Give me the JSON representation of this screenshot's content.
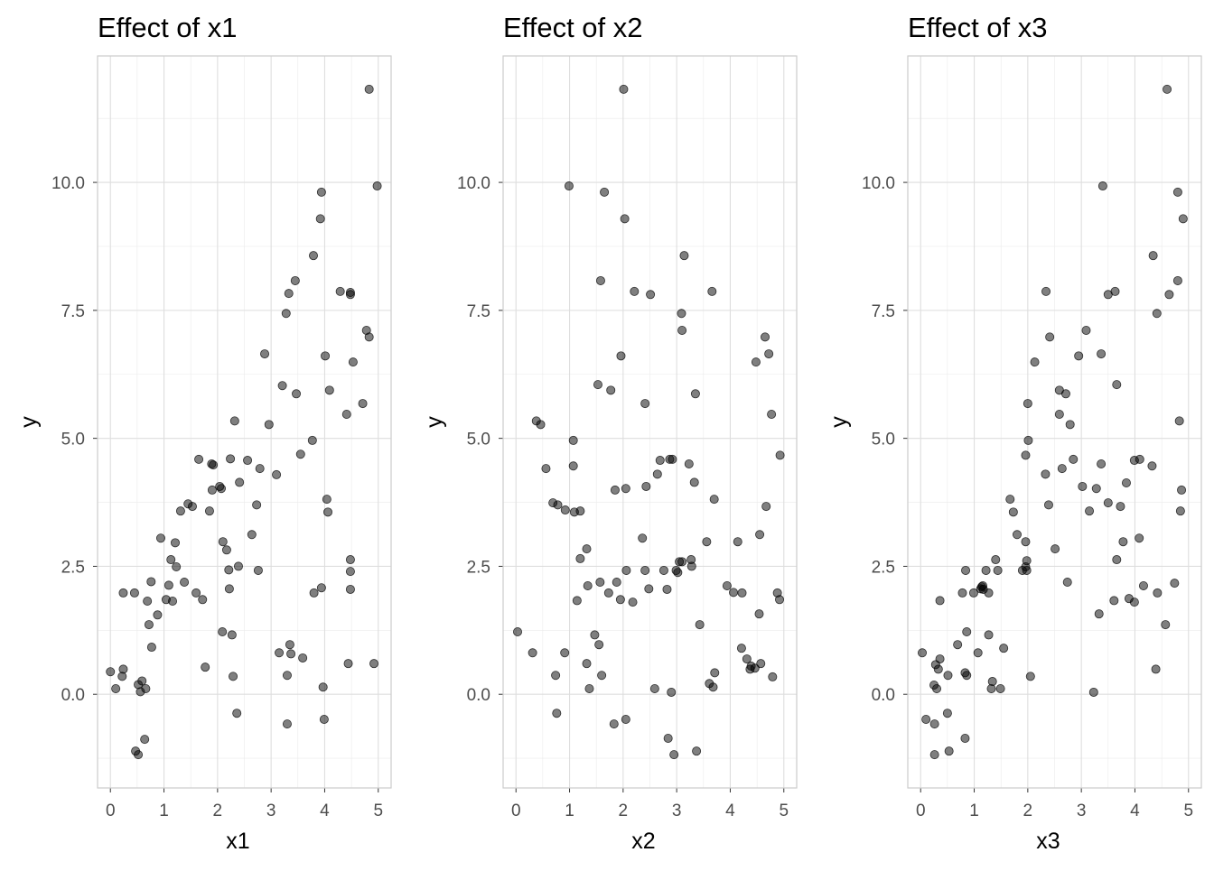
{
  "chart_data": [
    {
      "type": "scatter",
      "title": "Effect of x1",
      "xlabel": "x1",
      "ylabel": "y",
      "xlim": [
        -0.24,
        5.24
      ],
      "ylim": [
        -1.83,
        12.47
      ],
      "xticks": [
        "0",
        "1",
        "2",
        "3",
        "4",
        "5"
      ],
      "yticks": [
        "0.0",
        "2.5",
        "5.0",
        "7.5",
        "10.0"
      ],
      "grid": true,
      "points": [
        [
          0.0,
          0.44
        ],
        [
          0.1,
          0.11
        ],
        [
          0.24,
          1.98
        ],
        [
          0.22,
          0.35
        ],
        [
          0.24,
          0.49
        ],
        [
          0.45,
          1.98
        ],
        [
          0.47,
          -1.11
        ],
        [
          0.52,
          -1.18
        ],
        [
          0.52,
          0.19
        ],
        [
          0.56,
          0.05
        ],
        [
          0.59,
          0.26
        ],
        [
          0.64,
          -0.88
        ],
        [
          0.66,
          0.11
        ],
        [
          0.69,
          1.82
        ],
        [
          0.72,
          1.36
        ],
        [
          0.76,
          2.2
        ],
        [
          0.77,
          0.92
        ],
        [
          0.88,
          1.55
        ],
        [
          0.94,
          3.05
        ],
        [
          1.04,
          1.85
        ],
        [
          1.09,
          2.13
        ],
        [
          1.13,
          2.63
        ],
        [
          1.16,
          1.82
        ],
        [
          1.21,
          2.96
        ],
        [
          1.23,
          2.49
        ],
        [
          1.31,
          3.58
        ],
        [
          1.38,
          2.19
        ],
        [
          1.45,
          3.72
        ],
        [
          1.53,
          3.67
        ],
        [
          1.6,
          1.98
        ],
        [
          1.65,
          4.59
        ],
        [
          1.72,
          1.85
        ],
        [
          1.77,
          0.53
        ],
        [
          1.85,
          3.58
        ],
        [
          1.89,
          4.5
        ],
        [
          1.92,
          4.48
        ],
        [
          1.9,
          3.99
        ],
        [
          2.04,
          4.06
        ],
        [
          2.07,
          4.02
        ],
        [
          2.09,
          1.22
        ],
        [
          2.1,
          2.98
        ],
        [
          2.17,
          2.82
        ],
        [
          2.21,
          2.43
        ],
        [
          2.22,
          2.06
        ],
        [
          2.24,
          4.6
        ],
        [
          2.27,
          1.16
        ],
        [
          2.29,
          0.35
        ],
        [
          2.32,
          5.34
        ],
        [
          2.36,
          -0.37
        ],
        [
          2.39,
          2.5
        ],
        [
          2.41,
          4.14
        ],
        [
          2.56,
          4.57
        ],
        [
          2.64,
          3.12
        ],
        [
          2.73,
          3.7
        ],
        [
          2.76,
          2.42
        ],
        [
          2.79,
          4.41
        ],
        [
          2.88,
          6.65
        ],
        [
          2.96,
          5.27
        ],
        [
          3.1,
          4.29
        ],
        [
          3.15,
          0.81
        ],
        [
          3.21,
          6.03
        ],
        [
          3.28,
          7.44
        ],
        [
          3.3,
          0.37
        ],
        [
          3.3,
          -0.58
        ],
        [
          3.33,
          7.83
        ],
        [
          3.35,
          0.97
        ],
        [
          3.37,
          0.79
        ],
        [
          3.45,
          8.08
        ],
        [
          3.47,
          5.87
        ],
        [
          3.55,
          4.69
        ],
        [
          3.59,
          0.71
        ],
        [
          3.77,
          4.96
        ],
        [
          3.79,
          8.57
        ],
        [
          3.8,
          1.98
        ],
        [
          3.92,
          9.29
        ],
        [
          3.94,
          2.08
        ],
        [
          3.97,
          0.14
        ],
        [
          4.01,
          6.61
        ],
        [
          3.99,
          -0.49
        ],
        [
          4.04,
          3.81
        ],
        [
          4.06,
          3.56
        ],
        [
          4.09,
          5.94
        ],
        [
          3.94,
          9.81
        ],
        [
          4.29,
          7.87
        ],
        [
          4.41,
          5.47
        ],
        [
          4.44,
          0.6
        ],
        [
          4.48,
          7.85
        ],
        [
          4.48,
          7.81
        ],
        [
          4.48,
          2.63
        ],
        [
          4.48,
          2.4
        ],
        [
          4.48,
          2.05
        ],
        [
          4.53,
          6.49
        ],
        [
          4.71,
          5.68
        ],
        [
          4.78,
          7.11
        ],
        [
          4.83,
          11.82
        ],
        [
          4.83,
          6.98
        ],
        [
          4.92,
          0.6
        ],
        [
          4.98,
          9.93
        ]
      ]
    },
    {
      "type": "scatter",
      "title": "Effect of x2",
      "xlabel": "x2",
      "ylabel": "y",
      "xlim": [
        -0.24,
        5.24
      ],
      "ylim": [
        -1.83,
        12.47
      ],
      "xticks": [
        "0",
        "1",
        "2",
        "3",
        "4",
        "5"
      ],
      "yticks": [
        "0.0",
        "2.5",
        "5.0",
        "7.5",
        "10.0"
      ],
      "grid": true,
      "points": [
        [
          0.03,
          1.22
        ],
        [
          0.31,
          0.81
        ],
        [
          0.38,
          5.34
        ],
        [
          0.46,
          5.27
        ],
        [
          0.56,
          4.41
        ],
        [
          0.69,
          3.74
        ],
        [
          0.74,
          0.37
        ],
        [
          0.76,
          -0.37
        ],
        [
          0.78,
          3.7
        ],
        [
          0.91,
          0.81
        ],
        [
          0.92,
          3.6
        ],
        [
          0.99,
          9.93
        ],
        [
          1.07,
          4.96
        ],
        [
          1.07,
          4.46
        ],
        [
          1.09,
          3.56
        ],
        [
          1.14,
          1.83
        ],
        [
          1.2,
          3.58
        ],
        [
          1.2,
          2.65
        ],
        [
          1.32,
          2.84
        ],
        [
          1.32,
          0.6
        ],
        [
          1.34,
          2.12
        ],
        [
          1.37,
          0.11
        ],
        [
          1.47,
          1.16
        ],
        [
          1.53,
          6.05
        ],
        [
          1.55,
          0.97
        ],
        [
          1.58,
          8.08
        ],
        [
          1.6,
          0.37
        ],
        [
          1.57,
          2.19
        ],
        [
          1.65,
          9.81
        ],
        [
          1.73,
          1.98
        ],
        [
          1.77,
          5.94
        ],
        [
          1.83,
          -0.58
        ],
        [
          1.85,
          3.99
        ],
        [
          1.88,
          2.19
        ],
        [
          1.95,
          1.85
        ],
        [
          1.96,
          6.61
        ],
        [
          2.01,
          11.82
        ],
        [
          2.03,
          9.29
        ],
        [
          2.05,
          -0.49
        ],
        [
          2.05,
          4.02
        ],
        [
          2.06,
          2.42
        ],
        [
          2.18,
          1.8
        ],
        [
          2.21,
          7.87
        ],
        [
          2.36,
          3.05
        ],
        [
          2.41,
          5.68
        ],
        [
          2.41,
          2.42
        ],
        [
          2.43,
          4.06
        ],
        [
          2.48,
          2.06
        ],
        [
          2.51,
          7.81
        ],
        [
          2.59,
          0.11
        ],
        [
          2.64,
          4.3
        ],
        [
          2.69,
          4.57
        ],
        [
          2.76,
          2.42
        ],
        [
          2.82,
          2.05
        ],
        [
          2.84,
          -0.86
        ],
        [
          2.87,
          4.59
        ],
        [
          2.9,
          0.04
        ],
        [
          2.92,
          4.59
        ],
        [
          2.95,
          -1.18
        ],
        [
          2.99,
          2.42
        ],
        [
          3.02,
          2.38
        ],
        [
          3.05,
          2.59
        ],
        [
          3.09,
          7.44
        ],
        [
          3.1,
          7.11
        ],
        [
          3.1,
          2.59
        ],
        [
          3.14,
          8.57
        ],
        [
          3.23,
          4.5
        ],
        [
          3.27,
          2.63
        ],
        [
          3.28,
          2.5
        ],
        [
          3.33,
          4.14
        ],
        [
          3.37,
          -1.11
        ],
        [
          3.35,
          5.87
        ],
        [
          3.43,
          1.36
        ],
        [
          3.56,
          2.98
        ],
        [
          3.61,
          0.21
        ],
        [
          3.68,
          0.14
        ],
        [
          3.66,
          7.87
        ],
        [
          3.7,
          3.81
        ],
        [
          3.71,
          0.42
        ],
        [
          3.94,
          2.12
        ],
        [
          4.06,
          1.99
        ],
        [
          4.14,
          2.98
        ],
        [
          4.21,
          0.9
        ],
        [
          4.22,
          1.98
        ],
        [
          4.31,
          0.69
        ],
        [
          4.37,
          0.49
        ],
        [
          4.39,
          0.55
        ],
        [
          4.46,
          0.51
        ],
        [
          4.48,
          6.49
        ],
        [
          4.54,
          1.57
        ],
        [
          4.55,
          3.12
        ],
        [
          4.57,
          0.6
        ],
        [
          4.65,
          6.98
        ],
        [
          4.67,
          3.67
        ],
        [
          4.72,
          6.65
        ],
        [
          4.77,
          5.47
        ],
        [
          4.79,
          0.34
        ],
        [
          4.88,
          1.98
        ],
        [
          4.92,
          1.85
        ],
        [
          4.93,
          4.67
        ]
      ]
    },
    {
      "type": "scatter",
      "title": "Effect of x3",
      "xlabel": "x3",
      "ylabel": "y",
      "xlim": [
        -0.24,
        5.24
      ],
      "ylim": [
        -1.83,
        12.47
      ],
      "xticks": [
        "0",
        "1",
        "2",
        "3",
        "4",
        "5"
      ],
      "yticks": [
        "0.0",
        "2.5",
        "5.0",
        "7.5",
        "10.0"
      ],
      "grid": true,
      "points": [
        [
          0.03,
          0.81
        ],
        [
          0.1,
          -0.49
        ],
        [
          0.25,
          0.18
        ],
        [
          0.26,
          -1.18
        ],
        [
          0.26,
          -0.58
        ],
        [
          0.28,
          0.58
        ],
        [
          0.3,
          0.11
        ],
        [
          0.33,
          0.49
        ],
        [
          0.36,
          0.69
        ],
        [
          0.36,
          1.83
        ],
        [
          0.5,
          -0.37
        ],
        [
          0.51,
          0.37
        ],
        [
          0.53,
          -1.11
        ],
        [
          0.69,
          0.97
        ],
        [
          0.78,
          1.98
        ],
        [
          0.83,
          -0.86
        ],
        [
          0.83,
          0.42
        ],
        [
          0.84,
          2.42
        ],
        [
          0.86,
          0.37
        ],
        [
          0.86,
          1.22
        ],
        [
          0.99,
          1.98
        ],
        [
          1.07,
          0.81
        ],
        [
          1.12,
          2.06
        ],
        [
          1.14,
          2.1
        ],
        [
          1.16,
          2.12
        ],
        [
          1.17,
          2.05
        ],
        [
          1.22,
          2.42
        ],
        [
          1.27,
          1.16
        ],
        [
          1.27,
          1.98
        ],
        [
          1.32,
          0.11
        ],
        [
          1.34,
          0.25
        ],
        [
          1.4,
          2.63
        ],
        [
          1.44,
          2.42
        ],
        [
          1.49,
          0.11
        ],
        [
          1.55,
          0.9
        ],
        [
          1.67,
          3.81
        ],
        [
          1.73,
          3.56
        ],
        [
          1.8,
          3.12
        ],
        [
          1.9,
          2.42
        ],
        [
          1.96,
          2.98
        ],
        [
          1.96,
          2.49
        ],
        [
          1.98,
          2.61
        ],
        [
          1.98,
          2.42
        ],
        [
          1.96,
          4.67
        ],
        [
          2.0,
          5.68
        ],
        [
          2.01,
          4.96
        ],
        [
          2.05,
          0.35
        ],
        [
          2.13,
          6.49
        ],
        [
          2.33,
          4.3
        ],
        [
          2.34,
          7.87
        ],
        [
          2.39,
          3.7
        ],
        [
          2.41,
          6.98
        ],
        [
          2.51,
          2.84
        ],
        [
          2.59,
          5.47
        ],
        [
          2.59,
          5.94
        ],
        [
          2.64,
          4.41
        ],
        [
          2.71,
          5.87
        ],
        [
          2.74,
          2.19
        ],
        [
          2.79,
          5.27
        ],
        [
          2.85,
          4.59
        ],
        [
          2.95,
          6.61
        ],
        [
          3.02,
          4.06
        ],
        [
          3.09,
          7.11
        ],
        [
          3.15,
          3.58
        ],
        [
          3.23,
          0.04
        ],
        [
          3.28,
          4.02
        ],
        [
          3.33,
          1.57
        ],
        [
          3.37,
          4.5
        ],
        [
          3.37,
          6.65
        ],
        [
          3.4,
          9.93
        ],
        [
          3.5,
          3.74
        ],
        [
          3.5,
          7.81
        ],
        [
          3.61,
          1.83
        ],
        [
          3.63,
          7.87
        ],
        [
          3.66,
          2.63
        ],
        [
          3.66,
          6.05
        ],
        [
          3.73,
          3.67
        ],
        [
          3.78,
          2.98
        ],
        [
          3.84,
          4.13
        ],
        [
          3.89,
          1.87
        ],
        [
          3.99,
          4.57
        ],
        [
          3.99,
          1.8
        ],
        [
          4.08,
          3.05
        ],
        [
          4.09,
          4.59
        ],
        [
          4.16,
          2.12
        ],
        [
          4.32,
          4.46
        ],
        [
          4.34,
          8.57
        ],
        [
          4.39,
          0.49
        ],
        [
          4.41,
          7.44
        ],
        [
          4.42,
          1.98
        ],
        [
          4.57,
          1.36
        ],
        [
          4.6,
          11.82
        ],
        [
          4.64,
          7.81
        ],
        [
          4.74,
          2.17
        ],
        [
          4.8,
          9.81
        ],
        [
          4.8,
          8.08
        ],
        [
          4.83,
          5.34
        ],
        [
          4.87,
          3.99
        ],
        [
          4.85,
          3.58
        ],
        [
          4.9,
          9.29
        ]
      ]
    }
  ],
  "colors": {
    "point_fill": "#000000",
    "point_opacity": 0.5,
    "grid": "#ebebeb",
    "panel_border": "#cccccc",
    "tick_text": "#4d4d4d",
    "title_text": "#000000"
  }
}
